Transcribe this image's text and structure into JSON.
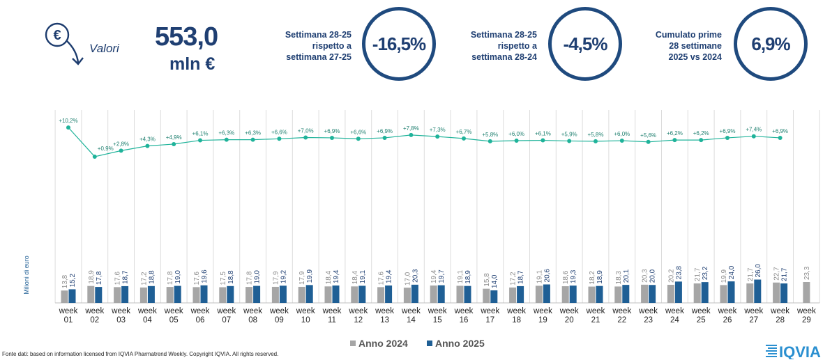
{
  "header": {
    "valori_label": "Valori",
    "total_value": "553,0",
    "total_unit": "mln €",
    "kpis": [
      {
        "label_lines": [
          "Settimana 28-25",
          "rispetto a",
          "settimana 27-25"
        ],
        "value": "-16,5%"
      },
      {
        "label_lines": [
          "Settimana 28-25",
          "rispetto a",
          "settimana 28-24"
        ],
        "value": "-4,5%"
      },
      {
        "label_lines": [
          "Cumulato prime",
          "28 settimane",
          "2025 vs 2024"
        ],
        "value": "6,9%"
      }
    ]
  },
  "colors": {
    "anno_2024": "#a6a6a6",
    "anno_2025": "#1f5f95",
    "growth_line": "#1fb39a",
    "kpi_text": "#1f3f72"
  },
  "chart_data": {
    "type": "bar",
    "ylabel": "Milioni di euro",
    "categories": [
      "week 01",
      "week 02",
      "week 03",
      "week 04",
      "week 05",
      "week 06",
      "week 07",
      "week 08",
      "week 09",
      "week 10",
      "week 11",
      "week 12",
      "week 13",
      "week 14",
      "week 15",
      "week 16",
      "week 17",
      "week 18",
      "week 19",
      "week 20",
      "week 21",
      "week 22",
      "week 23",
      "week 24",
      "week 25",
      "week 26",
      "week 27",
      "week 28",
      "week 29"
    ],
    "series": [
      {
        "name": "Anno 2024",
        "values": [
          13.8,
          18.9,
          17.6,
          17.2,
          17.8,
          17.6,
          17.5,
          17.8,
          17.9,
          17.9,
          18.4,
          18.4,
          17.6,
          17.0,
          19.4,
          19.1,
          15.8,
          17.2,
          19.1,
          18.6,
          18.2,
          18.3,
          20.3,
          20.2,
          21.7,
          19.9,
          21.7,
          22.7,
          23.3
        ]
      },
      {
        "name": "Anno 2025",
        "values": [
          15.2,
          17.8,
          18.7,
          18.8,
          19.0,
          19.6,
          18.8,
          19.0,
          19.2,
          19.9,
          19.4,
          19.1,
          19.4,
          20.3,
          19.7,
          18.9,
          14.0,
          18.7,
          20.6,
          19.3,
          18.9,
          20.1,
          20.0,
          23.8,
          23.2,
          24.0,
          26.0,
          21.7,
          null
        ]
      }
    ],
    "value_labels": {
      "Anno 2024": [
        "13,8",
        "18,9",
        "17,6",
        "17,2",
        "17,8",
        "17,6",
        "17,5",
        "17,8",
        "17,9",
        "17,9",
        "18,4",
        "18,4",
        "17,6",
        "17,0",
        "19,4",
        "19,1",
        "15,8",
        "17,2",
        "19,1",
        "18,6",
        "18,2",
        "18,3",
        "20,3",
        "20,2",
        "21,7",
        "19,9",
        "21,7",
        "22,7",
        "23,3"
      ],
      "Anno 2025": [
        "15,2",
        "17,8",
        "18,7",
        "18,8",
        "19,0",
        "19,6",
        "18,8",
        "19,0",
        "19,2",
        "19,9",
        "19,4",
        "19,1",
        "19,4",
        "20,3",
        "19,7",
        "18,9",
        "14,0",
        "18,7",
        "20,6",
        "19,3",
        "18,9",
        "20,1",
        "20,0",
        "23,8",
        "23,2",
        "24,0",
        "26,0",
        "21,7",
        ""
      ]
    },
    "growth_line": {
      "values": [
        10.2,
        0.9,
        2.8,
        4.3,
        4.9,
        6.1,
        6.3,
        6.3,
        6.6,
        7.0,
        6.9,
        6.6,
        6.9,
        7.8,
        7.3,
        6.7,
        5.8,
        6.0,
        6.1,
        5.9,
        5.8,
        6.0,
        5.6,
        6.2,
        6.2,
        6.9,
        7.4,
        6.9
      ],
      "labels": [
        "+10,2%",
        "+0,9%",
        "+2,8%",
        "+4,3%",
        "+4,9%",
        "+6,1%",
        "+6,3%",
        "+6,3%",
        "+6,6%",
        "+7,0%",
        "+6,9%",
        "+6,6%",
        "+6,9%",
        "+7,8%",
        "+7,3%",
        "+6,7%",
        "+5,8%",
        "+6,0%",
        "+6,1%",
        "+5,9%",
        "+5,8%",
        "+6,0%",
        "+5,6%",
        "+6,2%",
        "+6,2%",
        "+6,9%",
        "+7,4%",
        "+6,9%"
      ]
    },
    "ylim": [
      0,
      30
    ],
    "grid": "vertical",
    "legend": "bottom-center"
  },
  "footer": {
    "source_note": "Fonte dati: based on information licensed from IQVIA Pharmatrend Weekly. Copyright IQVIA. All rights reserved.",
    "logo_text": "IQVIA"
  }
}
